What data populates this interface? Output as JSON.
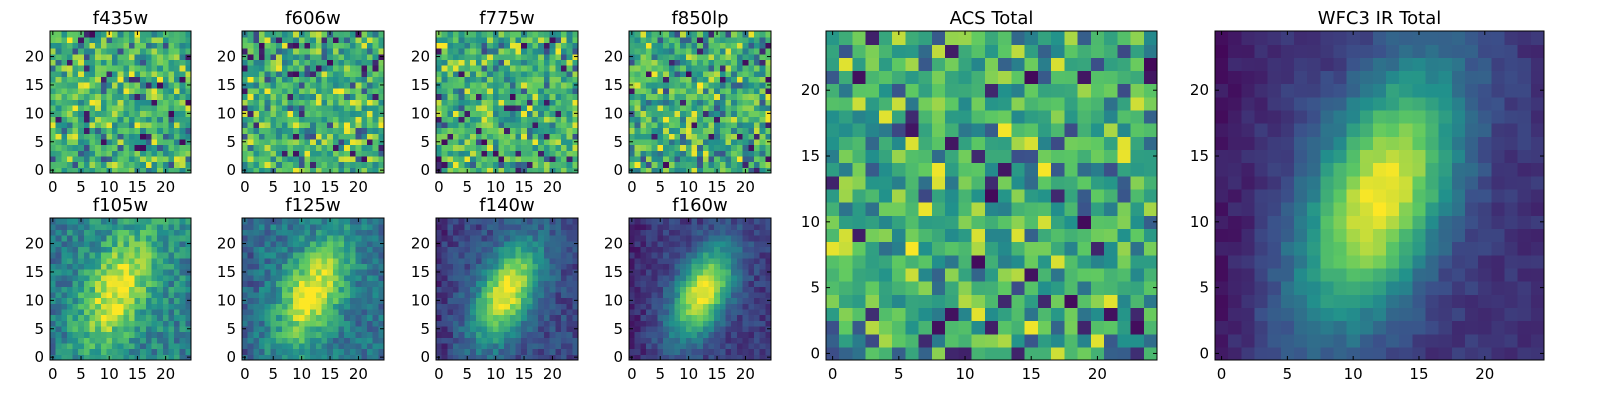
{
  "colormap": [
    "#440154",
    "#3b528b",
    "#21918c",
    "#5ec962",
    "#fde725"
  ],
  "chart_data": [
    {
      "type": "heatmap",
      "title": "f435w",
      "pattern": "noise",
      "seed": 11,
      "low_bias": 0.32,
      "grid_size": 25,
      "xticks": [
        "0",
        "5",
        "10",
        "15",
        "20"
      ],
      "yticks": [
        "0",
        "5",
        "10",
        "15",
        "20"
      ],
      "xlim": [
        0,
        24
      ],
      "ylim": [
        0,
        24
      ]
    },
    {
      "type": "heatmap",
      "title": "f606w",
      "pattern": "noise",
      "seed": 23,
      "low_bias": 0.3,
      "grid_size": 25,
      "xticks": [
        "0",
        "5",
        "10",
        "15",
        "20"
      ],
      "yticks": [
        "0",
        "5",
        "10",
        "15",
        "20"
      ],
      "xlim": [
        0,
        24
      ],
      "ylim": [
        0,
        24
      ]
    },
    {
      "type": "heatmap",
      "title": "f775w",
      "pattern": "noise",
      "seed": 37,
      "low_bias": 0.3,
      "grid_size": 25,
      "xticks": [
        "0",
        "5",
        "10",
        "15",
        "20"
      ],
      "yticks": [
        "0",
        "5",
        "10",
        "15",
        "20"
      ],
      "xlim": [
        0,
        24
      ],
      "ylim": [
        0,
        24
      ]
    },
    {
      "type": "heatmap",
      "title": "f850lp",
      "pattern": "noise",
      "seed": 53,
      "low_bias": 0.5,
      "grid_size": 25,
      "xticks": [
        "0",
        "5",
        "10",
        "15",
        "20"
      ],
      "yticks": [
        "0",
        "5",
        "10",
        "15",
        "20"
      ],
      "xlim": [
        0,
        24
      ],
      "ylim": [
        0,
        24
      ]
    },
    {
      "type": "heatmap",
      "title": "f105w",
      "pattern": "source",
      "seed": 61,
      "peak": [
        11.5,
        12.0
      ],
      "sigma": [
        3.5,
        7.5
      ],
      "angle_deg": 25,
      "background": 0.45,
      "noise": 0.16,
      "grid_size": 25,
      "xticks": [
        "0",
        "5",
        "10",
        "15",
        "20"
      ],
      "yticks": [
        "0",
        "5",
        "10",
        "15",
        "20"
      ],
      "xlim": [
        0,
        24
      ],
      "ylim": [
        0,
        24
      ]
    },
    {
      "type": "heatmap",
      "title": "f125w",
      "pattern": "source",
      "seed": 71,
      "peak": [
        12.0,
        11.5
      ],
      "sigma": [
        3.4,
        7.0
      ],
      "angle_deg": 25,
      "background": 0.38,
      "noise": 0.14,
      "grid_size": 25,
      "xticks": [
        "0",
        "5",
        "10",
        "15",
        "20"
      ],
      "yticks": [
        "0",
        "5",
        "10",
        "15",
        "20"
      ],
      "xlim": [
        0,
        24
      ],
      "ylim": [
        0,
        24
      ]
    },
    {
      "type": "heatmap",
      "title": "f140w",
      "pattern": "source",
      "seed": 83,
      "peak": [
        12.0,
        11.5
      ],
      "sigma": [
        3.2,
        6.5
      ],
      "angle_deg": 25,
      "background": 0.22,
      "noise": 0.1,
      "grid_size": 25,
      "xticks": [
        "0",
        "5",
        "10",
        "15",
        "20"
      ],
      "yticks": [
        "0",
        "5",
        "10",
        "15",
        "20"
      ],
      "xlim": [
        0,
        24
      ],
      "ylim": [
        0,
        24
      ]
    },
    {
      "type": "heatmap",
      "title": "f160w",
      "pattern": "source",
      "seed": 97,
      "peak": [
        12.5,
        11.5
      ],
      "sigma": [
        3.0,
        6.0
      ],
      "angle_deg": 25,
      "background": 0.18,
      "noise": 0.08,
      "grid_size": 25,
      "xticks": [
        "0",
        "5",
        "10",
        "15",
        "20"
      ],
      "yticks": [
        "0",
        "5",
        "10",
        "15",
        "20"
      ],
      "xlim": [
        0,
        24
      ],
      "ylim": [
        0,
        24
      ]
    },
    {
      "type": "heatmap",
      "title": "ACS Total",
      "pattern": "noise",
      "seed": 131,
      "low_bias": 0.45,
      "grid_size": 25,
      "xticks": [
        "0",
        "5",
        "10",
        "15",
        "20"
      ],
      "yticks": [
        "0",
        "5",
        "10",
        "15",
        "20"
      ],
      "xlim": [
        0,
        24
      ],
      "ylim": [
        0,
        24
      ]
    },
    {
      "type": "heatmap",
      "title": "WFC3 IR Total",
      "pattern": "source",
      "seed": 149,
      "peak": [
        12.0,
        12.0
      ],
      "sigma": [
        3.4,
        7.0
      ],
      "angle_deg": 22,
      "background": 0.15,
      "noise": 0.05,
      "grid_size": 25,
      "xticks": [
        "0",
        "5",
        "10",
        "15",
        "20"
      ],
      "yticks": [
        "0",
        "5",
        "10",
        "15",
        "20"
      ],
      "xlim": [
        0,
        24
      ],
      "ylim": [
        0,
        24
      ]
    }
  ]
}
